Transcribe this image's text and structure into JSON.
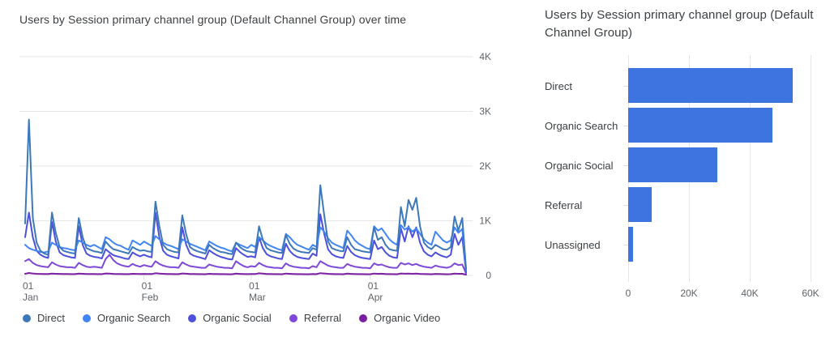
{
  "page": {
    "background": "#ffffff"
  },
  "chart_data": [
    {
      "type": "line",
      "title": "Users by Session primary channel group (Default Channel Group) over time",
      "xlabel": "",
      "ylabel": "",
      "x_unit": "day",
      "x_range": [
        "Jan 1",
        "Apr 26"
      ],
      "ylim": [
        0,
        4000
      ],
      "grid": "horizontal",
      "legend_position": "bottom",
      "y_ticks": [
        {
          "value": 0,
          "label": "0"
        },
        {
          "value": 1000,
          "label": "1K"
        },
        {
          "value": 2000,
          "label": "2K"
        },
        {
          "value": 3000,
          "label": "3K"
        },
        {
          "value": 4000,
          "label": "4K"
        }
      ],
      "x_ticks": [
        {
          "day": 0,
          "top": "01",
          "bottom": "Jan"
        },
        {
          "day": 31,
          "top": "01",
          "bottom": "Feb"
        },
        {
          "day": 59,
          "top": "01",
          "bottom": "Mar"
        },
        {
          "day": 90,
          "top": "01",
          "bottom": "Apr"
        }
      ],
      "series": [
        {
          "name": "Direct",
          "color": "#3D79B8",
          "values": [
            950,
            2850,
            1050,
            600,
            450,
            400,
            380,
            1150,
            780,
            520,
            450,
            430,
            410,
            400,
            1050,
            700,
            500,
            470,
            440,
            430,
            410,
            620,
            540,
            480,
            460,
            440,
            420,
            400,
            520,
            480,
            450,
            460,
            440,
            430,
            1350,
            900,
            560,
            480,
            450,
            430,
            420,
            1100,
            750,
            520,
            470,
            440,
            420,
            400,
            560,
            500,
            460,
            430,
            420,
            400,
            390,
            600,
            520,
            470,
            440,
            430,
            420,
            900,
            650,
            500,
            460,
            440,
            420,
            410,
            740,
            580,
            490,
            450,
            430,
            420,
            410,
            500,
            470,
            1650,
            1100,
            620,
            500,
            470,
            450,
            440,
            700,
            560,
            480,
            460,
            440,
            430,
            420,
            880,
            650,
            700,
            560,
            480,
            460,
            450,
            1250,
            900,
            1380,
            1200,
            1420,
            900,
            600,
            520,
            480,
            560,
            520,
            480,
            470,
            520,
            1080,
            820,
            1050,
            120
          ]
        },
        {
          "name": "Organic Search",
          "color": "#4285F4",
          "values": [
            560,
            500,
            470,
            450,
            430,
            420,
            440,
            600,
            560,
            520,
            500,
            490,
            470,
            460,
            640,
            600,
            560,
            530,
            560,
            520,
            480,
            700,
            660,
            600,
            560,
            540,
            500,
            470,
            640,
            600,
            560,
            620,
            580,
            540,
            720,
            660,
            600,
            560,
            540,
            510,
            480,
            660,
            620,
            580,
            550,
            520,
            490,
            460,
            620,
            580,
            540,
            510,
            490,
            460,
            440,
            600,
            560,
            530,
            500,
            560,
            520,
            700,
            640,
            580,
            540,
            510,
            480,
            460,
            760,
            700,
            620,
            560,
            530,
            500,
            470,
            560,
            520,
            880,
            800,
            680,
            600,
            560,
            530,
            500,
            820,
            740,
            640,
            580,
            540,
            500,
            480,
            900,
            820,
            860,
            760,
            660,
            600,
            560,
            920,
            840,
            880,
            800,
            860,
            760,
            660,
            600,
            560,
            800,
            720,
            640,
            600,
            640,
            880,
            780,
            850,
            100
          ]
        },
        {
          "name": "Organic Social",
          "color": "#4C50DB",
          "values": [
            700,
            1150,
            700,
            450,
            380,
            340,
            320,
            980,
            620,
            420,
            370,
            350,
            330,
            320,
            900,
            560,
            400,
            360,
            340,
            330,
            310,
            480,
            420,
            370,
            350,
            330,
            310,
            300,
            420,
            380,
            350,
            380,
            350,
            330,
            1150,
            700,
            450,
            380,
            350,
            330,
            310,
            880,
            560,
            400,
            360,
            340,
            320,
            300,
            460,
            410,
            370,
            340,
            320,
            300,
            290,
            500,
            430,
            380,
            340,
            350,
            330,
            700,
            500,
            390,
            350,
            330,
            310,
            300,
            580,
            450,
            380,
            340,
            320,
            310,
            300,
            400,
            360,
            1120,
            760,
            480,
            390,
            350,
            330,
            320,
            540,
            430,
            370,
            340,
            320,
            310,
            300,
            640,
            480,
            520,
            420,
            360,
            330,
            320,
            860,
            620,
            900,
            700,
            880,
            600,
            440,
            380,
            350,
            420,
            380,
            350,
            330,
            380,
            760,
            560,
            700,
            60
          ]
        },
        {
          "name": "Referral",
          "color": "#7E49D8",
          "values": [
            260,
            300,
            230,
            190,
            170,
            160,
            150,
            240,
            200,
            170,
            160,
            150,
            150,
            140,
            230,
            190,
            160,
            150,
            160,
            150,
            140,
            300,
            380,
            280,
            220,
            190,
            170,
            160,
            210,
            180,
            160,
            190,
            170,
            160,
            260,
            210,
            180,
            160,
            150,
            150,
            140,
            240,
            200,
            170,
            160,
            150,
            140,
            140,
            200,
            180,
            160,
            150,
            140,
            140,
            130,
            260,
            210,
            170,
            150,
            170,
            160,
            230,
            190,
            160,
            150,
            140,
            140,
            130,
            220,
            180,
            160,
            150,
            140,
            140,
            130,
            170,
            150,
            260,
            220,
            180,
            160,
            150,
            140,
            140,
            210,
            180,
            160,
            150,
            140,
            140,
            130,
            220,
            190,
            200,
            170,
            150,
            140,
            140,
            230,
            200,
            220,
            190,
            210,
            180,
            160,
            150,
            140,
            180,
            160,
            150,
            140,
            160,
            220,
            190,
            200,
            40
          ]
        },
        {
          "name": "Organic Video",
          "color": "#7B1FA2",
          "values": [
            30,
            45,
            35,
            30,
            28,
            26,
            25,
            32,
            30,
            28,
            26,
            25,
            24,
            24,
            34,
            30,
            27,
            26,
            25,
            24,
            23,
            36,
            32,
            28,
            26,
            25,
            24,
            23,
            30,
            28,
            26,
            28,
            26,
            25,
            40,
            34,
            29,
            26,
            25,
            24,
            23,
            36,
            31,
            27,
            25,
            24,
            23,
            22,
            30,
            27,
            25,
            24,
            23,
            22,
            22,
            32,
            28,
            25,
            24,
            26,
            25,
            38,
            32,
            27,
            25,
            24,
            23,
            22,
            34,
            29,
            26,
            24,
            23,
            22,
            22,
            26,
            24,
            42,
            36,
            29,
            26,
            24,
            23,
            22,
            32,
            28,
            25,
            24,
            23,
            22,
            22,
            34,
            29,
            31,
            27,
            24,
            23,
            22,
            36,
            31,
            34,
            29,
            33,
            28,
            25,
            23,
            22,
            28,
            25,
            23,
            22,
            24,
            34,
            29,
            30,
            15
          ]
        }
      ]
    },
    {
      "type": "bar",
      "orientation": "horizontal",
      "title": "Users by Session primary channel group (Default Channel Group)",
      "categories": [
        "Direct",
        "Organic Search",
        "Organic Social",
        "Referral",
        "Unassigned"
      ],
      "values": [
        54000,
        47500,
        29300,
        7700,
        1600
      ],
      "bar_color": "#3E74DF",
      "xlim": [
        0,
        60000
      ],
      "grid": "vertical",
      "x_ticks": [
        {
          "value": 0,
          "label": "0"
        },
        {
          "value": 20000,
          "label": "20K"
        },
        {
          "value": 40000,
          "label": "40K"
        },
        {
          "value": 60000,
          "label": "60K"
        }
      ]
    }
  ],
  "colors": {
    "gridline": "#e6e6e6",
    "axis_label": "#5f6368",
    "title_text": "#3c4043"
  }
}
